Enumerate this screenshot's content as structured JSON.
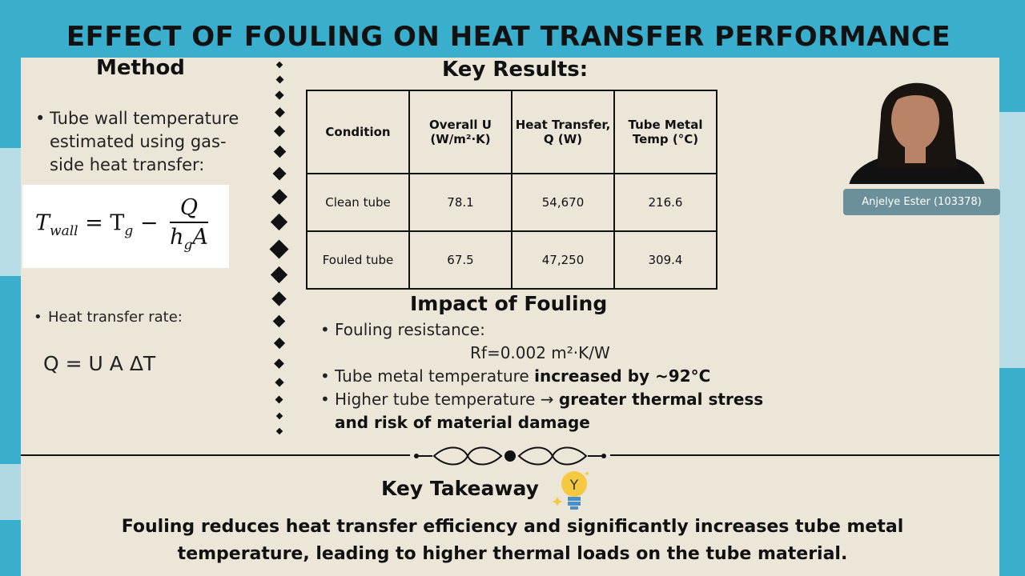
{
  "title": "EFFECT OF FOULING ON HEAT TRANSFER PERFORMANCE",
  "method": {
    "heading": "Method",
    "bullet1": "Tube wall temperature estimated using gas-side heat transfer:",
    "formula_lhs": "T",
    "formula_lhs_sub": "wall",
    "formula_eq": " = T",
    "formula_tg_sub": "g",
    "formula_minus": " − ",
    "formula_num": "Q",
    "formula_den": "h",
    "formula_den_sub": "g",
    "formula_den_a": "A",
    "bullet2": "Heat transfer rate:",
    "equation2": "Q = U A ΔT"
  },
  "results": {
    "heading": "Key Results:",
    "headers": [
      "Condition",
      "Overall U (W/m²·K)",
      "Heat Transfer, Q (W)",
      "Tube Metal Temp (°C)"
    ],
    "rows": [
      [
        "Clean tube",
        "78.1",
        "54,670",
        "216.6"
      ],
      [
        "Fouled tube",
        "67.5",
        "47,250",
        "309.4"
      ]
    ]
  },
  "impact": {
    "heading": "Impact of Fouling",
    "b1": "Fouling resistance:",
    "b1_value": "Rf=0.002 m²·K/W",
    "b2_pre": "Tube metal temperature ",
    "b2_bold": "increased by ~92°C",
    "b3_pre": "Higher tube temperature → ",
    "b3_bold": "greater thermal stress and risk of material damage"
  },
  "takeaway": {
    "heading": "Key Takeaway",
    "text": "Fouling reduces heat transfer efficiency and significantly increases tube metal temperature, leading to higher thermal loads on the tube material."
  },
  "presenter": {
    "name": "Anjelye Ester (103378)"
  },
  "colors": {
    "background": "#3aaecd",
    "paper": "#ece6d9",
    "name_tag": "#6b9099"
  }
}
